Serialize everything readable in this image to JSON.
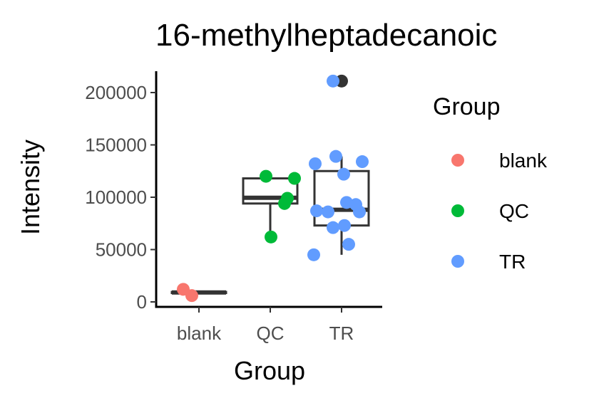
{
  "chart_data": {
    "type": "box",
    "title": "16-methylheptadecanoic",
    "xlabel": "Group",
    "ylabel": "Intensity",
    "categories": [
      "blank",
      "QC",
      "TR"
    ],
    "ylim": [
      -2000,
      222000
    ],
    "yticks": [
      0,
      50000,
      100000,
      150000,
      200000
    ],
    "ytick_labels": [
      "0",
      "50000",
      "100000",
      "150000",
      "200000"
    ],
    "grid": false,
    "boxes": [
      {
        "category": "blank",
        "q1": 8500,
        "median": 9000,
        "q3": 9500,
        "whisker_low": 8500,
        "whisker_high": 9500,
        "outliers": []
      },
      {
        "category": "QC",
        "q1": 94000,
        "median": 99500,
        "q3": 118000,
        "whisker_low": 62000,
        "whisker_high": 120000,
        "outliers": []
      },
      {
        "category": "TR",
        "q1": 73000,
        "median": 88000,
        "q3": 125000,
        "whisker_low": 45000,
        "whisker_high": 139000,
        "outliers": [
          211000
        ]
      }
    ],
    "series": [
      {
        "name": "blank",
        "color": "#F8766D",
        "points": [
          {
            "x": "blank",
            "jitter": -0.22,
            "y": 12000
          },
          {
            "x": "blank",
            "jitter": -0.1,
            "y": 6000
          }
        ]
      },
      {
        "name": "QC",
        "color": "#00BA38",
        "points": [
          {
            "x": "QC",
            "jitter": -0.06,
            "y": 120000
          },
          {
            "x": "QC",
            "jitter": 0.34,
            "y": 118000
          },
          {
            "x": "QC",
            "jitter": 0.24,
            "y": 99000
          },
          {
            "x": "QC",
            "jitter": 0.2,
            "y": 94000
          },
          {
            "x": "QC",
            "jitter": 0.01,
            "y": 62000
          }
        ]
      },
      {
        "name": "TR",
        "color": "#619CFF",
        "points": [
          {
            "x": "TR",
            "jitter": -0.12,
            "y": 211000
          },
          {
            "x": "TR",
            "jitter": -0.08,
            "y": 139000
          },
          {
            "x": "TR",
            "jitter": 0.29,
            "y": 134000
          },
          {
            "x": "TR",
            "jitter": -0.37,
            "y": 132000
          },
          {
            "x": "TR",
            "jitter": 0.03,
            "y": 122000
          },
          {
            "x": "TR",
            "jitter": 0.07,
            "y": 95000
          },
          {
            "x": "TR",
            "jitter": 0.2,
            "y": 93000
          },
          {
            "x": "TR",
            "jitter": -0.35,
            "y": 87000
          },
          {
            "x": "TR",
            "jitter": -0.19,
            "y": 86000
          },
          {
            "x": "TR",
            "jitter": 0.25,
            "y": 86000
          },
          {
            "x": "TR",
            "jitter": 0.04,
            "y": 73000
          },
          {
            "x": "TR",
            "jitter": -0.12,
            "y": 71000
          },
          {
            "x": "TR",
            "jitter": 0.1,
            "y": 55000
          },
          {
            "x": "TR",
            "jitter": -0.39,
            "y": 45000
          }
        ]
      }
    ],
    "outlier_color": "#333333",
    "legend": {
      "title": "Group",
      "position": "right",
      "entries": [
        {
          "label": "blank",
          "color": "#F8766D"
        },
        {
          "label": "QC",
          "color": "#00BA38"
        },
        {
          "label": "TR",
          "color": "#619CFF"
        }
      ]
    }
  }
}
